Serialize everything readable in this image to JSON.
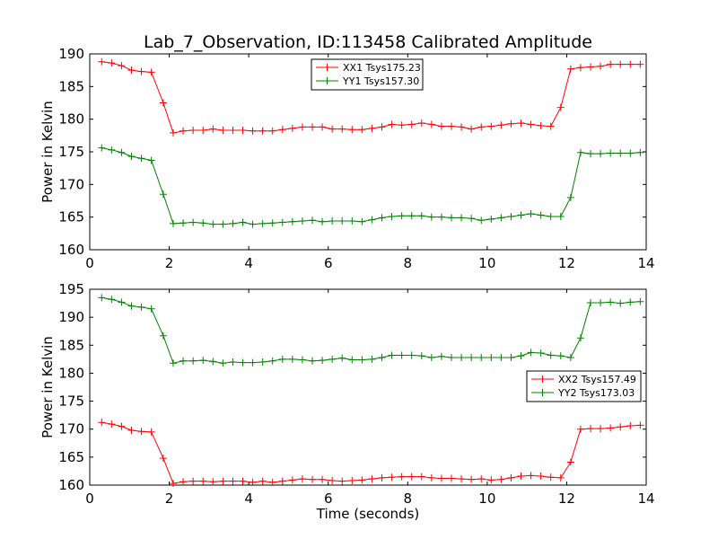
{
  "figure_title": "Lab_7_Observation, ID:113458 Calibrated Amplitude",
  "chart_data": [
    {
      "type": "line",
      "title": "Lab_7_Observation, ID:113458 Calibrated Amplitude",
      "xlabel": "",
      "ylabel": "Power in Kelvin",
      "xlim": [
        0,
        14
      ],
      "ylim": [
        160,
        190
      ],
      "xticks": [
        "0",
        "2",
        "4",
        "6",
        "8",
        "10",
        "12",
        "14"
      ],
      "yticks": [
        "160",
        "165",
        "170",
        "175",
        "180",
        "185",
        "190"
      ],
      "grid": false,
      "legend_position": "top-center",
      "x": [
        0.3,
        0.55,
        0.8,
        1.05,
        1.3,
        1.55,
        1.85,
        2.1,
        2.35,
        2.6,
        2.85,
        3.1,
        3.35,
        3.6,
        3.85,
        4.1,
        4.35,
        4.6,
        4.85,
        5.1,
        5.35,
        5.6,
        5.85,
        6.1,
        6.35,
        6.6,
        6.85,
        7.1,
        7.35,
        7.6,
        7.85,
        8.1,
        8.35,
        8.6,
        8.85,
        9.1,
        9.35,
        9.6,
        9.85,
        10.1,
        10.35,
        10.6,
        10.85,
        11.1,
        11.35,
        11.6,
        11.85,
        12.1,
        12.35,
        12.6,
        12.85,
        13.1,
        13.35,
        13.6,
        13.85
      ],
      "series": [
        {
          "name": "XX1 Tsys175.23",
          "color": "#ff0000",
          "values": [
            188.8,
            188.6,
            188.2,
            187.5,
            187.3,
            187.2,
            182.5,
            177.9,
            178.2,
            178.3,
            178.3,
            178.5,
            178.3,
            178.3,
            178.3,
            178.2,
            178.2,
            178.2,
            178.4,
            178.6,
            178.8,
            178.8,
            178.8,
            178.5,
            178.5,
            178.4,
            178.4,
            178.6,
            178.8,
            179.2,
            179.1,
            179.2,
            179.4,
            179.2,
            178.9,
            178.9,
            178.8,
            178.5,
            178.8,
            178.9,
            179.1,
            179.3,
            179.4,
            179.2,
            179.0,
            178.9,
            181.8,
            187.7,
            187.9,
            188.0,
            188.1,
            188.4,
            188.4,
            188.4,
            188.4
          ]
        },
        {
          "name": "YY1 Tsys157.30",
          "color": "#008000",
          "values": [
            175.6,
            175.3,
            174.9,
            174.3,
            174.0,
            173.7,
            168.5,
            164.0,
            164.1,
            164.2,
            164.1,
            163.9,
            163.9,
            164.0,
            164.2,
            163.9,
            164.0,
            164.1,
            164.2,
            164.3,
            164.4,
            164.5,
            164.3,
            164.4,
            164.4,
            164.4,
            164.3,
            164.6,
            164.9,
            165.1,
            165.2,
            165.2,
            165.2,
            165.0,
            165.0,
            164.9,
            164.9,
            164.8,
            164.5,
            164.7,
            164.9,
            165.1,
            165.3,
            165.5,
            165.3,
            165.1,
            165.1,
            168.0,
            174.9,
            174.7,
            174.7,
            174.8,
            174.8,
            174.8,
            174.9
          ]
        }
      ]
    },
    {
      "type": "line",
      "title": "",
      "xlabel": "Time (seconds)",
      "ylabel": "Power in Kelvin",
      "xlim": [
        0,
        14
      ],
      "ylim": [
        160,
        195
      ],
      "xticks": [
        "0",
        "2",
        "4",
        "6",
        "8",
        "10",
        "12",
        "14"
      ],
      "yticks": [
        "160",
        "165",
        "170",
        "175",
        "180",
        "185",
        "190",
        "195"
      ],
      "grid": false,
      "legend_position": "center-right",
      "x": [
        0.3,
        0.55,
        0.8,
        1.05,
        1.3,
        1.55,
        1.85,
        2.1,
        2.35,
        2.6,
        2.85,
        3.1,
        3.35,
        3.6,
        3.85,
        4.1,
        4.35,
        4.6,
        4.85,
        5.1,
        5.35,
        5.6,
        5.85,
        6.1,
        6.35,
        6.6,
        6.85,
        7.1,
        7.35,
        7.6,
        7.85,
        8.1,
        8.35,
        8.6,
        8.85,
        9.1,
        9.35,
        9.6,
        9.85,
        10.1,
        10.35,
        10.6,
        10.85,
        11.1,
        11.35,
        11.6,
        11.85,
        12.1,
        12.35,
        12.6,
        12.85,
        13.1,
        13.35,
        13.6,
        13.85
      ],
      "series": [
        {
          "name": "XX2 Tsys157.49",
          "color": "#ff0000",
          "values": [
            171.2,
            170.9,
            170.5,
            169.8,
            169.6,
            169.5,
            164.8,
            160.3,
            160.6,
            160.7,
            160.7,
            160.6,
            160.7,
            160.7,
            160.7,
            160.5,
            160.7,
            160.5,
            160.7,
            160.9,
            161.1,
            161.0,
            161.0,
            160.8,
            160.7,
            160.8,
            160.9,
            161.1,
            161.3,
            161.4,
            161.5,
            161.5,
            161.5,
            161.3,
            161.2,
            161.2,
            161.1,
            161.0,
            161.1,
            160.9,
            161.0,
            161.3,
            161.6,
            161.7,
            161.6,
            161.4,
            161.3,
            164.1,
            170.0,
            170.1,
            170.1,
            170.2,
            170.4,
            170.6,
            170.7
          ]
        },
        {
          "name": "YY2 Tsys173.03",
          "color": "#008000",
          "values": [
            193.5,
            193.2,
            192.7,
            192.0,
            191.8,
            191.5,
            186.7,
            181.8,
            182.2,
            182.2,
            182.3,
            182.1,
            181.8,
            182.0,
            181.9,
            181.9,
            182.0,
            182.2,
            182.5,
            182.5,
            182.4,
            182.2,
            182.3,
            182.5,
            182.7,
            182.4,
            182.4,
            182.5,
            182.8,
            183.2,
            183.2,
            183.2,
            183.1,
            182.8,
            183.0,
            182.8,
            182.8,
            182.8,
            182.8,
            182.8,
            182.8,
            182.8,
            183.1,
            183.7,
            183.6,
            183.2,
            183.1,
            182.8,
            186.3,
            192.6,
            192.6,
            192.7,
            192.5,
            192.7,
            192.8
          ]
        }
      ]
    }
  ]
}
